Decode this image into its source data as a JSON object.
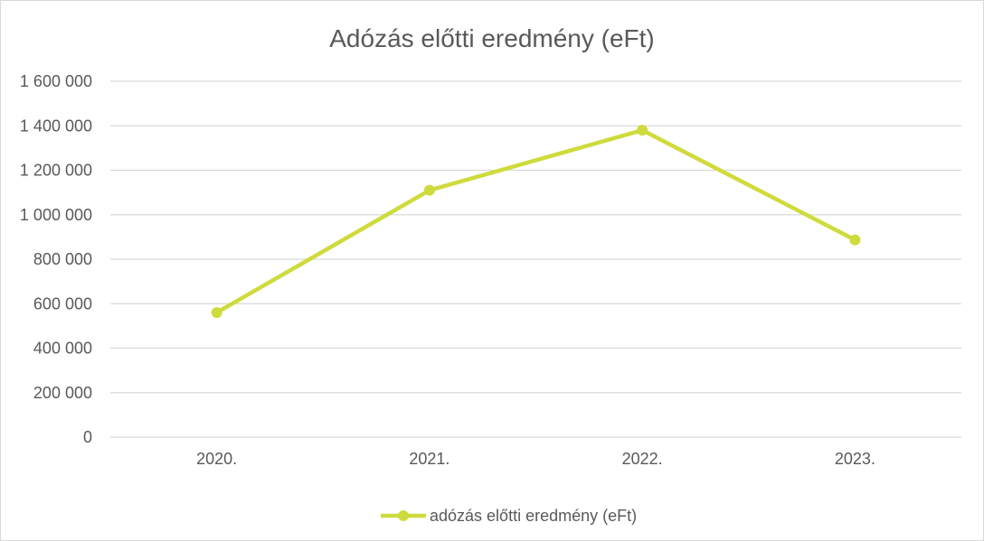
{
  "chart_data": {
    "type": "line",
    "title": "Adózás előtti eredmény (eFt)",
    "categories": [
      "2020.",
      "2021.",
      "2022.",
      "2023."
    ],
    "series": [
      {
        "name": "adózás előtti eredmény (eFt)",
        "values": [
          560000,
          1110000,
          1380000,
          887000
        ],
        "color": "#cedb3c"
      }
    ],
    "ylim": [
      0,
      1600000
    ],
    "yticks": [
      0,
      200000,
      400000,
      600000,
      800000,
      1000000,
      1200000,
      1400000,
      1600000
    ],
    "ytick_labels": [
      "0",
      "200 000",
      "400 000",
      "600 000",
      "800 000",
      "1 000 000",
      "1 200 000",
      "1 400 000",
      "1 600 000"
    ],
    "grid": true,
    "legend_position": "bottom",
    "gridline_color": "#d9d9d9",
    "text_color": "#595959"
  }
}
